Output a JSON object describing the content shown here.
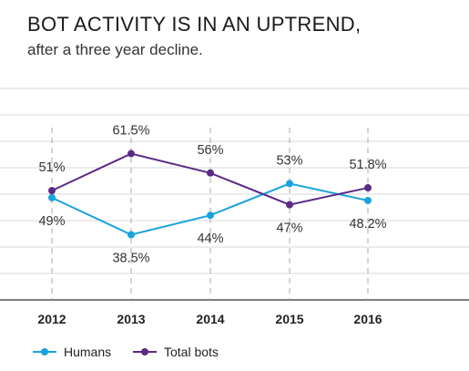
{
  "header": {
    "title": "BOT ACTIVITY IS IN AN UPTREND,",
    "subtitle": "after a three year decline."
  },
  "colors": {
    "humans": "#1aa3dd",
    "bots": "#5b2a86",
    "grid": "#d8d8d8",
    "axis": "#555555"
  },
  "chart_data": {
    "type": "line",
    "title": "BOT ACTIVITY IS IN AN UPTREND,",
    "subtitle": "after a three year decline.",
    "xlabel": "",
    "ylabel": "",
    "categories": [
      "2012",
      "2013",
      "2014",
      "2015",
      "2016"
    ],
    "series": [
      {
        "name": "Humans",
        "values": [
          49,
          38.5,
          44,
          53,
          48.2
        ],
        "labels": [
          "49%",
          "38.5%",
          "44%",
          "53%",
          "48.2%"
        ],
        "color": "#1aa3dd"
      },
      {
        "name": "Total bots",
        "values": [
          51,
          61.5,
          56,
          47,
          51.8
        ],
        "labels": [
          "51%",
          "61.5%",
          "56%",
          "47%",
          "51.8%"
        ],
        "color": "#5b2a86"
      }
    ],
    "ylim": [
      20,
      80
    ],
    "grid": true,
    "legend": "bottom-left"
  }
}
